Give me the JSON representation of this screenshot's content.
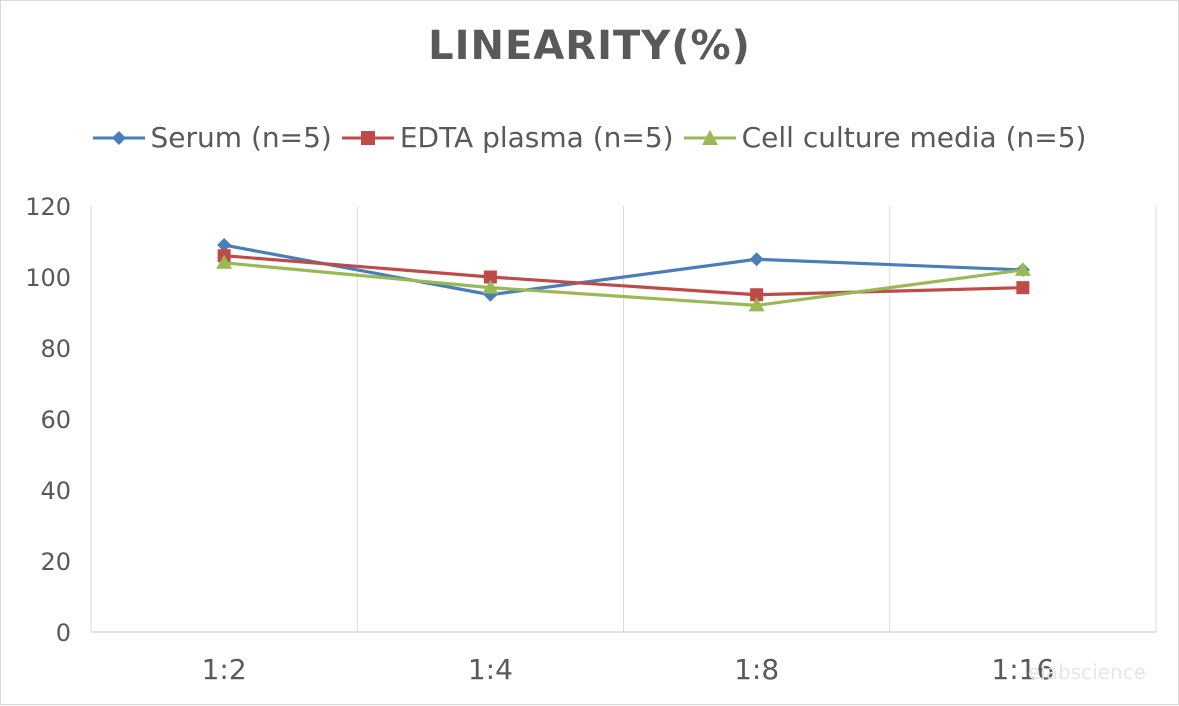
{
  "chart_data": {
    "type": "line",
    "title": "LINEARITY(%)",
    "xlabel": "",
    "ylabel": "",
    "categories": [
      "1:2",
      "1:4",
      "1:8",
      "1:16"
    ],
    "ylim": [
      0,
      120
    ],
    "yticks": [
      0,
      20,
      40,
      60,
      80,
      100,
      120
    ],
    "grid": "vertical",
    "legend_position": "top",
    "series": [
      {
        "name": "Serum (n=5)",
        "values": [
          109,
          95,
          105,
          102
        ],
        "color": "#4a7ebb",
        "marker": "diamond"
      },
      {
        "name": "EDTA plasma (n=5)",
        "values": [
          106,
          100,
          95,
          97
        ],
        "color": "#be4b48",
        "marker": "square"
      },
      {
        "name": "Cell culture media (n=5)",
        "values": [
          104,
          97,
          92,
          102
        ],
        "color": "#98b954",
        "marker": "triangle"
      }
    ],
    "watermark": "elabscience"
  }
}
